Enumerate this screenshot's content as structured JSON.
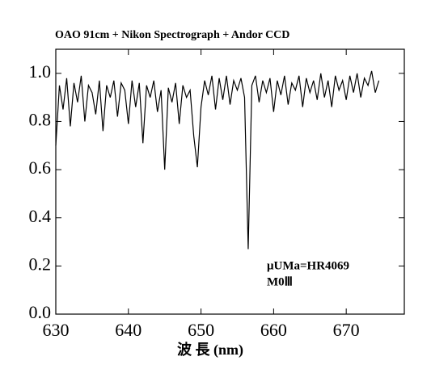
{
  "chart_data": {
    "type": "line",
    "title": "OAO 91cm + Nikon Spectrograph + Andor CCD",
    "x_label": "波 長 (nm)",
    "annotations": [
      "μUMa=HR4069",
      "M0Ⅲ"
    ],
    "xlim": [
      630,
      678
    ],
    "ylim": [
      0,
      1.1
    ],
    "xticks": [
      630,
      640,
      650,
      660,
      670
    ],
    "yticks": [
      {
        "value": 0,
        "label": "0.0"
      },
      0.2,
      0.4,
      0.6,
      0.8,
      {
        "value": 1,
        "label": "1.0"
      }
    ],
    "series": [
      {
        "color": "#000000",
        "x": [
          630.0,
          630.5,
          631.0,
          631.5,
          632.0,
          632.5,
          633.0,
          633.5,
          634.0,
          634.5,
          635.0,
          635.5,
          636.0,
          636.5,
          637.0,
          637.5,
          638.0,
          638.5,
          639.0,
          639.5,
          640.0,
          640.5,
          641.0,
          641.5,
          642.0,
          642.5,
          643.0,
          643.5,
          644.0,
          644.5,
          645.0,
          645.5,
          646.0,
          646.5,
          647.0,
          647.5,
          648.0,
          648.5,
          649.0,
          649.5,
          650.0,
          650.5,
          651.0,
          651.5,
          652.0,
          652.5,
          653.0,
          653.5,
          654.0,
          654.5,
          655.0,
          655.5,
          656.0,
          656.5,
          657.0,
          657.5,
          658.0,
          658.5,
          659.0,
          659.5,
          660.0,
          660.5,
          661.0,
          661.5,
          662.0,
          662.5,
          663.0,
          663.5,
          664.0,
          664.5,
          665.0,
          665.5,
          666.0,
          666.5,
          667.0,
          667.5,
          668.0,
          668.5,
          669.0,
          669.5,
          670.0,
          670.5,
          671.0,
          671.5,
          672.0,
          672.5,
          673.0,
          673.5,
          674.0,
          674.5
        ],
        "values": [
          0.7,
          0.95,
          0.85,
          0.98,
          0.78,
          0.96,
          0.88,
          0.99,
          0.8,
          0.95,
          0.92,
          0.83,
          0.97,
          0.76,
          0.95,
          0.9,
          0.97,
          0.82,
          0.96,
          0.93,
          0.79,
          0.97,
          0.86,
          0.96,
          0.71,
          0.95,
          0.9,
          0.97,
          0.84,
          0.93,
          0.6,
          0.94,
          0.88,
          0.96,
          0.79,
          0.95,
          0.9,
          0.93,
          0.74,
          0.61,
          0.86,
          0.97,
          0.91,
          0.99,
          0.85,
          0.98,
          0.89,
          0.99,
          0.87,
          0.97,
          0.93,
          0.98,
          0.9,
          0.27,
          0.95,
          0.99,
          0.88,
          0.97,
          0.92,
          0.98,
          0.84,
          0.97,
          0.91,
          0.99,
          0.87,
          0.96,
          0.93,
          0.99,
          0.86,
          0.98,
          0.92,
          0.97,
          0.89,
          1.0,
          0.9,
          0.97,
          0.86,
          0.99,
          0.93,
          0.97,
          0.89,
          0.99,
          0.92,
          1.0,
          0.9,
          0.98,
          0.95,
          1.01,
          0.92,
          0.97
        ]
      }
    ]
  }
}
